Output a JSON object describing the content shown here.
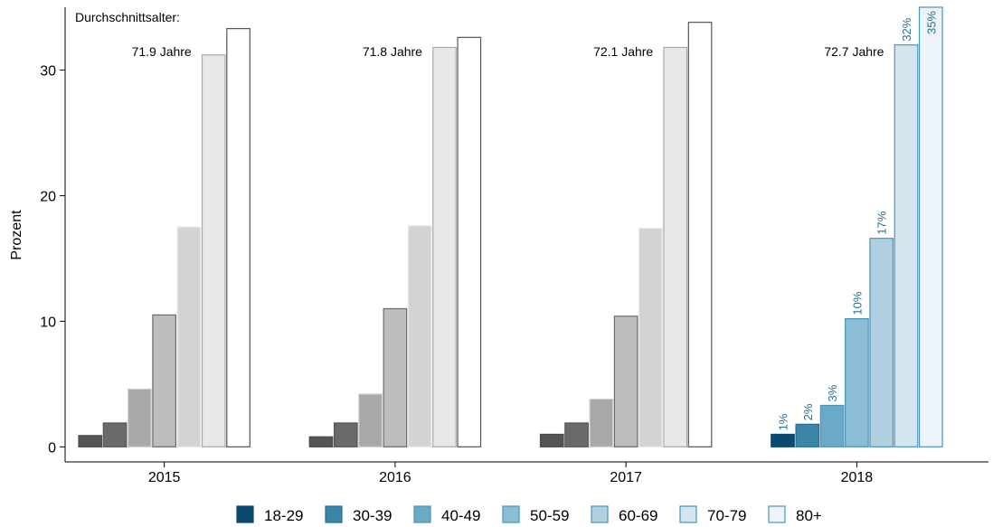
{
  "chart_data": {
    "type": "bar",
    "header_label": "Durchschnittsalter:",
    "ylabel": "Prozent",
    "xlabel": "",
    "ylim": [
      -1.2,
      35
    ],
    "yticks": [
      0,
      10,
      20,
      30
    ],
    "categories": [
      "2015",
      "2016",
      "2017",
      "2018"
    ],
    "averages": [
      "71.9 Jahre",
      "71.8 Jahre",
      "72.1 Jahre",
      "72.7 Jahre"
    ],
    "grid": false,
    "legend_position": "bottom",
    "series": [
      {
        "name": "18-29",
        "values": [
          0.9,
          0.8,
          1.0,
          1.0
        ],
        "fill": "#555555",
        "stroke": "#4a4a4a",
        "highlight_fill": "#0b4a6f",
        "highlight_stroke": "#0b4a6f"
      },
      {
        "name": "30-39",
        "values": [
          1.9,
          1.9,
          1.9,
          1.8
        ],
        "fill": "#6a6a6a",
        "stroke": "#555555",
        "highlight_fill": "#3a86a8",
        "highlight_stroke": "#2a6f92"
      },
      {
        "name": "40-49",
        "values": [
          4.6,
          4.2,
          3.8,
          3.3
        ],
        "fill": "#a8a8a8",
        "stroke": "#d0d0d0",
        "highlight_fill": "#6aa9c8",
        "highlight_stroke": "#4d93b8"
      },
      {
        "name": "50-59",
        "values": [
          10.5,
          11.0,
          10.4,
          10.2
        ],
        "fill": "#bdbdbd",
        "stroke": "#6a6a6a",
        "highlight_fill": "#8cbdd6",
        "highlight_stroke": "#4d93b8"
      },
      {
        "name": "60-69",
        "values": [
          17.5,
          17.6,
          17.4,
          16.6
        ],
        "fill": "#d3d3d3",
        "stroke": "#e8e8e8",
        "highlight_fill": "#b0d0e2",
        "highlight_stroke": "#4d93b8"
      },
      {
        "name": "70-79",
        "values": [
          31.2,
          31.8,
          31.8,
          32.0
        ],
        "fill": "#e8e8e8",
        "stroke": "#a8a8a8",
        "highlight_fill": "#d3e6f0",
        "highlight_stroke": "#4d93b8"
      },
      {
        "name": "80+",
        "values": [
          33.3,
          32.6,
          33.8,
          35.0
        ],
        "fill": "#ffffff",
        "stroke": "#555555",
        "highlight_fill": "#ecf4f9",
        "highlight_stroke": "#4d93b8"
      }
    ],
    "highlight_category": "2018",
    "highlight_labels": [
      "1%",
      "2%",
      "3%",
      "10%",
      "17%",
      "32%",
      "35%"
    ],
    "label_color": "#2a6f92"
  }
}
